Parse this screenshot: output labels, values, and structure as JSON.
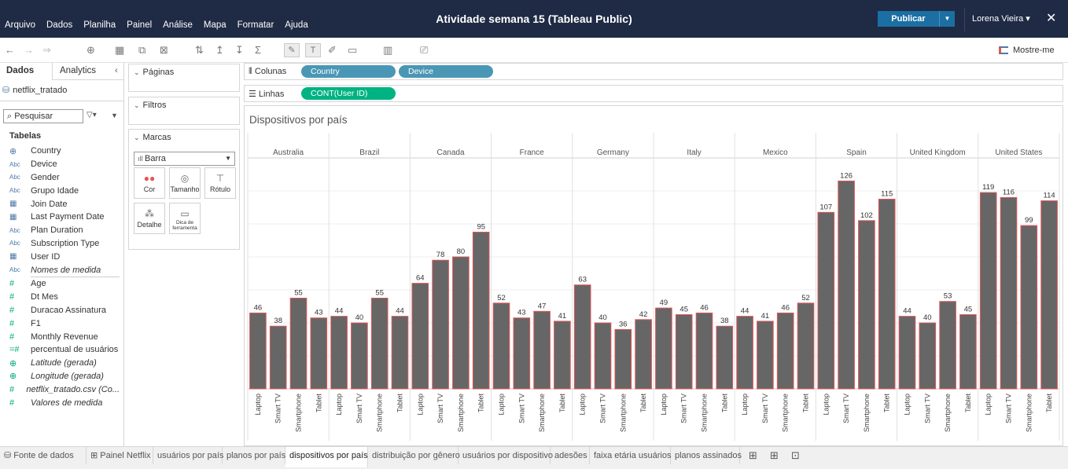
{
  "menubar": {
    "items": [
      "Arquivo",
      "Dados",
      "Planilha",
      "Painel",
      "Análise",
      "Mapa",
      "Formatar",
      "Ajuda"
    ],
    "window_title": "Atividade semana 15 (Tableau Public)",
    "publish_label": "Publicar",
    "user_name": "Lorena Vieira",
    "user_caret": "▾",
    "close_glyph": "✕"
  },
  "toolbar": {
    "show_me_label": "Mostre-me"
  },
  "left_pane": {
    "tabs": [
      "Dados",
      "Analytics"
    ],
    "data_source": "netflix_tratado",
    "search_placeholder": "Pesquisar",
    "tables_header": "Tabelas",
    "dimension_fields": [
      {
        "icon": "⊕",
        "name": "Country",
        "italic": false
      },
      {
        "icon": "Abc",
        "name": "Device",
        "italic": false
      },
      {
        "icon": "Abc",
        "name": "Gender",
        "italic": false
      },
      {
        "icon": "Abc",
        "name": "Grupo Idade",
        "italic": false
      },
      {
        "icon": "▦",
        "name": "Join Date",
        "italic": false
      },
      {
        "icon": "▦",
        "name": "Last Payment Date",
        "italic": false
      },
      {
        "icon": "Abc",
        "name": "Plan Duration",
        "italic": false
      },
      {
        "icon": "Abc",
        "name": "Subscription Type",
        "italic": false
      },
      {
        "icon": "▦",
        "name": "User ID",
        "italic": false
      },
      {
        "icon": "Abc",
        "name": "Nomes de medida",
        "italic": true
      }
    ],
    "measure_fields": [
      {
        "icon": "#",
        "name": "Age",
        "italic": false
      },
      {
        "icon": "#",
        "name": "Dt Mes",
        "italic": false
      },
      {
        "icon": "#",
        "name": "Duracao Assinatura",
        "italic": false
      },
      {
        "icon": "#",
        "name": "F1",
        "italic": false
      },
      {
        "icon": "#",
        "name": "Monthly Revenue",
        "italic": false
      },
      {
        "icon": "=#",
        "name": "percentual de usuários",
        "italic": false
      },
      {
        "icon": "⊕",
        "name": "Latitude (gerada)",
        "italic": true
      },
      {
        "icon": "⊕",
        "name": "Longitude (gerada)",
        "italic": true
      },
      {
        "icon": "#",
        "name": "netflix_tratado.csv (Co...",
        "italic": true
      },
      {
        "icon": "#",
        "name": "Valores de medida",
        "italic": true
      }
    ]
  },
  "cards": {
    "pages_label": "Páginas",
    "filters_label": "Filtros",
    "marks_label": "Marcas",
    "mark_type": "Barra",
    "mark_buttons": {
      "color": "Cor",
      "size": "Tamanho",
      "label": "Rótulo",
      "detail": "Detalhe",
      "tooltip": "Dica de ferramenta"
    }
  },
  "shelves": {
    "columns_label": "Colunas",
    "rows_label": "Linhas",
    "column_pills": [
      "Country",
      "Device"
    ],
    "row_pills": [
      "CONT(User ID)"
    ]
  },
  "sheet_tabs": [
    "Fonte de dados",
    "Painel Netflix",
    "usuários por país",
    "planos por país",
    "dispositivos por país",
    "distribuição por gênero",
    "usuários por dispositivo",
    "adesões",
    "faixa etária usuários",
    "planos assinados"
  ],
  "active_sheet_tab": "dispositivos por país",
  "colors": {
    "bar_fill": "#666666",
    "bar_stroke": "#e0585b",
    "dimension_pill": "#4a97b5",
    "measure_pill": "#00b383",
    "menubar": "#1f2a44",
    "publish": "#1b6fa3"
  },
  "chart_data": {
    "type": "bar",
    "title": "Dispositivos por país",
    "groups": [
      "Australia",
      "Brazil",
      "Canada",
      "France",
      "Germany",
      "Italy",
      "Mexico",
      "Spain",
      "United Kingdom",
      "United States"
    ],
    "categories": [
      "Laptop",
      "Smart TV",
      "Smartphone",
      "Tablet"
    ],
    "values": [
      [
        46,
        38,
        55,
        43
      ],
      [
        44,
        40,
        55,
        44
      ],
      [
        64,
        78,
        80,
        95
      ],
      [
        52,
        43,
        47,
        41
      ],
      [
        63,
        40,
        36,
        42
      ],
      [
        49,
        45,
        46,
        38
      ],
      [
        44,
        41,
        46,
        52
      ],
      [
        107,
        126,
        102,
        115
      ],
      [
        44,
        40,
        53,
        45
      ],
      [
        119,
        116,
        99,
        114
      ]
    ],
    "ylim": [
      0,
      140
    ],
    "grid": true,
    "data_labels": true
  }
}
